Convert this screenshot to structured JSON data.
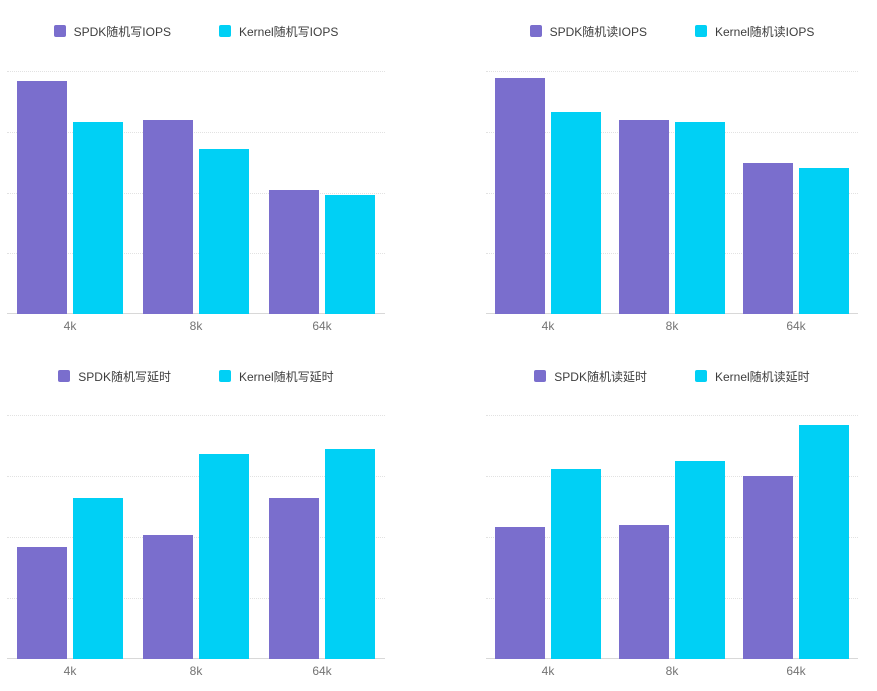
{
  "page": {
    "background": "#ffffff"
  },
  "colors": {
    "spdk_series": "#7A6ECD",
    "kernel_series": "#00D0F5",
    "gridline": "#e2e2e2",
    "axis_line": "#d8d8d8",
    "tick_label": "#737373",
    "legend_text": "#3d3d3d"
  },
  "chart_data": [
    {
      "id": "random-write-iops",
      "type": "bar",
      "title": "",
      "xlabel": "",
      "ylabel": "",
      "categories": [
        "4k",
        "8k",
        "64k"
      ],
      "series": [
        {
          "name": "SPDK随机写IOPS",
          "color": "#7A6ECD",
          "values": [
            96,
            80,
            51
          ]
        },
        {
          "name": "Kernel随机写IOPS",
          "color": "#00D0F5",
          "values": [
            79,
            68,
            49
          ]
        }
      ],
      "ylim": [
        0,
        100
      ],
      "y_tick_step": 25,
      "y_tick_labels_visible": false,
      "grid": true,
      "legend_position": "top"
    },
    {
      "id": "random-read-iops",
      "type": "bar",
      "title": "",
      "xlabel": "",
      "ylabel": "",
      "categories": [
        "4k",
        "8k",
        "64k"
      ],
      "series": [
        {
          "name": "SPDK随机读IOPS",
          "color": "#7A6ECD",
          "values": [
            97,
            80,
            62
          ]
        },
        {
          "name": "Kernel随机读IOPS",
          "color": "#00D0F5",
          "values": [
            83,
            79,
            60
          ]
        }
      ],
      "ylim": [
        0,
        100
      ],
      "y_tick_step": 25,
      "y_tick_labels_visible": false,
      "grid": true,
      "legend_position": "top"
    },
    {
      "id": "random-write-latency",
      "type": "bar",
      "title": "",
      "xlabel": "",
      "ylabel": "",
      "categories": [
        "4k",
        "8k",
        "64k"
      ],
      "series": [
        {
          "name": "SPDK随机写延时",
          "color": "#7A6ECD",
          "values": [
            46,
            51,
            66
          ]
        },
        {
          "name": "Kernel随机写延时",
          "color": "#00D0F5",
          "values": [
            66,
            84,
            86
          ]
        }
      ],
      "ylim": [
        0,
        100
      ],
      "y_tick_step": 25,
      "y_tick_labels_visible": false,
      "grid": true,
      "legend_position": "top"
    },
    {
      "id": "random-read-latency",
      "type": "bar",
      "title": "",
      "xlabel": "",
      "ylabel": "",
      "categories": [
        "4k",
        "8k",
        "64k"
      ],
      "series": [
        {
          "name": "SPDK随机读延时",
          "color": "#7A6ECD",
          "values": [
            54,
            55,
            75
          ]
        },
        {
          "name": "Kernel随机读延时",
          "color": "#00D0F5",
          "values": [
            78,
            81,
            96
          ]
        }
      ],
      "ylim": [
        0,
        100
      ],
      "y_tick_step": 25,
      "y_tick_labels_visible": false,
      "grid": true,
      "legend_position": "top"
    }
  ]
}
